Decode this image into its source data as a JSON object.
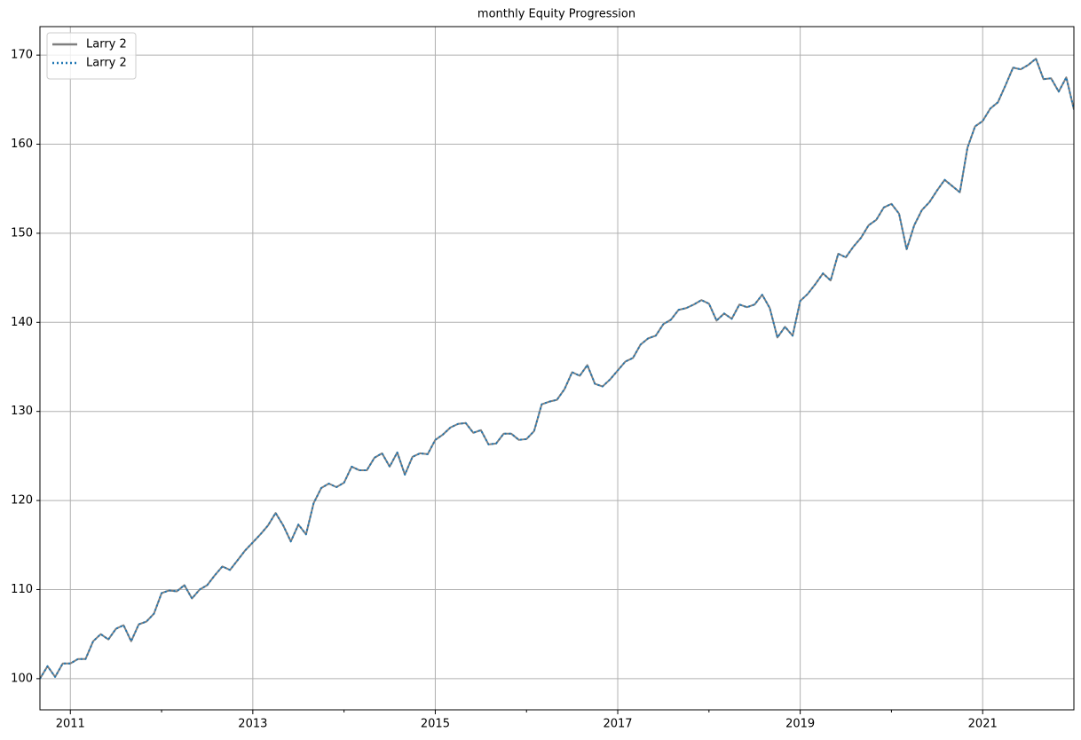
{
  "chart_data": {
    "type": "line",
    "title": "monthly Equity Progression",
    "x": [
      "2010-08",
      "2010-09",
      "2010-10",
      "2010-11",
      "2010-12",
      "2011-01",
      "2011-02",
      "2011-03",
      "2011-04",
      "2011-05",
      "2011-06",
      "2011-07",
      "2011-08",
      "2011-09",
      "2011-10",
      "2011-11",
      "2011-12",
      "2012-01",
      "2012-02",
      "2012-03",
      "2012-04",
      "2012-05",
      "2012-06",
      "2012-07",
      "2012-08",
      "2012-09",
      "2012-10",
      "2012-11",
      "2012-12",
      "2013-01",
      "2013-02",
      "2013-03",
      "2013-04",
      "2013-05",
      "2013-06",
      "2013-07",
      "2013-08",
      "2013-09",
      "2013-10",
      "2013-11",
      "2013-12",
      "2014-01",
      "2014-02",
      "2014-03",
      "2014-04",
      "2014-05",
      "2014-06",
      "2014-07",
      "2014-08",
      "2014-09",
      "2014-10",
      "2014-11",
      "2014-12",
      "2015-01",
      "2015-02",
      "2015-03",
      "2015-04",
      "2015-05",
      "2015-06",
      "2015-07",
      "2015-08",
      "2015-09",
      "2015-10",
      "2015-11",
      "2015-12",
      "2016-01",
      "2016-02",
      "2016-03",
      "2016-04",
      "2016-05",
      "2016-06",
      "2016-07",
      "2016-08",
      "2016-09",
      "2016-10",
      "2016-11",
      "2016-12",
      "2017-01",
      "2017-02",
      "2017-03",
      "2017-04",
      "2017-05",
      "2017-06",
      "2017-07",
      "2017-08",
      "2017-09",
      "2017-10",
      "2017-11",
      "2017-12",
      "2018-01",
      "2018-02",
      "2018-03",
      "2018-04",
      "2018-05",
      "2018-06",
      "2018-07",
      "2018-08",
      "2018-09",
      "2018-10",
      "2018-11",
      "2018-12",
      "2019-01",
      "2019-02",
      "2019-03",
      "2019-04",
      "2019-05",
      "2019-06",
      "2019-07",
      "2019-08",
      "2019-09",
      "2019-10",
      "2019-11",
      "2019-12",
      "2020-01",
      "2020-02",
      "2020-03",
      "2020-04",
      "2020-05",
      "2020-06",
      "2020-07",
      "2020-08",
      "2020-09",
      "2020-10",
      "2020-11",
      "2020-12",
      "2021-01",
      "2021-02",
      "2021-03",
      "2021-04",
      "2021-05",
      "2021-06",
      "2021-07",
      "2021-08",
      "2021-09",
      "2021-10",
      "2021-11",
      "2021-12"
    ],
    "series": [
      {
        "name": "Larry 2",
        "color": "#7f7f7f",
        "dash": "solid",
        "values": [
          100,
          101.4,
          100.2,
          101.7,
          101.7,
          102.2,
          102.2,
          104.2,
          105,
          104.4,
          105.6,
          106,
          104.2,
          106.1,
          106.4,
          107.3,
          109.6,
          109.9,
          109.8,
          110.5,
          109,
          110,
          110.5,
          111.6,
          112.6,
          112.2,
          113.3,
          114.4,
          115.3,
          116.2,
          117.2,
          118.6,
          117.2,
          115.4,
          117.3,
          116.2,
          119.7,
          121.4,
          121.9,
          121.5,
          122,
          123.8,
          123.4,
          123.4,
          124.8,
          125.3,
          123.8,
          125.4,
          122.9,
          124.9,
          125.3,
          125.2,
          126.8,
          127.4,
          128.2,
          128.6,
          128.7,
          127.6,
          127.9,
          126.3,
          126.4,
          127.5,
          127.5,
          126.8,
          126.9,
          127.8,
          130.8,
          131.1,
          131.3,
          132.5,
          134.4,
          134,
          135.2,
          133.1,
          132.8,
          133.6,
          134.6,
          135.6,
          136,
          137.5,
          138.2,
          138.5,
          139.8,
          140.3,
          141.4,
          141.6,
          142,
          142.5,
          142.1,
          140.2,
          141,
          140.4,
          142,
          141.7,
          142,
          143.1,
          141.6,
          138.3,
          139.5,
          138.5,
          142.4,
          143.2,
          144.3,
          145.5,
          144.7,
          147.7,
          147.3,
          148.5,
          149.5,
          150.9,
          151.5,
          152.9,
          153.3,
          152.2,
          148.2,
          150.9,
          152.6,
          153.5,
          154.8,
          156,
          155.3,
          154.6,
          159.6,
          162,
          162.6,
          164,
          164.7,
          166.6,
          168.6,
          168.4,
          168.9,
          169.6,
          167.3,
          167.4,
          165.9,
          167.5,
          163.9
        ]
      },
      {
        "name": "Larry 2",
        "color": "#1f77b4",
        "dash": "dotted",
        "values": [
          100,
          101.4,
          100.2,
          101.7,
          101.7,
          102.2,
          102.2,
          104.2,
          105,
          104.4,
          105.6,
          106,
          104.2,
          106.1,
          106.4,
          107.3,
          109.6,
          109.9,
          109.8,
          110.5,
          109,
          110,
          110.5,
          111.6,
          112.6,
          112.2,
          113.3,
          114.4,
          115.3,
          116.2,
          117.2,
          118.6,
          117.2,
          115.4,
          117.3,
          116.2,
          119.7,
          121.4,
          121.9,
          121.5,
          122,
          123.8,
          123.4,
          123.4,
          124.8,
          125.3,
          123.8,
          125.4,
          122.9,
          124.9,
          125.3,
          125.2,
          126.8,
          127.4,
          128.2,
          128.6,
          128.7,
          127.6,
          127.9,
          126.3,
          126.4,
          127.5,
          127.5,
          126.8,
          126.9,
          127.8,
          130.8,
          131.1,
          131.3,
          132.5,
          134.4,
          134,
          135.2,
          133.1,
          132.8,
          133.6,
          134.6,
          135.6,
          136,
          137.5,
          138.2,
          138.5,
          139.8,
          140.3,
          141.4,
          141.6,
          142,
          142.5,
          142.1,
          140.2,
          141,
          140.4,
          142,
          141.7,
          142,
          143.1,
          141.6,
          138.3,
          139.5,
          138.5,
          142.4,
          143.2,
          144.3,
          145.5,
          144.7,
          147.7,
          147.3,
          148.5,
          149.5,
          150.9,
          151.5,
          152.9,
          153.3,
          152.2,
          148.2,
          150.9,
          152.6,
          153.5,
          154.8,
          156,
          155.3,
          154.6,
          159.6,
          162,
          162.6,
          164,
          164.7,
          166.6,
          168.6,
          168.4,
          168.9,
          169.6,
          167.3,
          167.4,
          165.9,
          167.5,
          163.9
        ]
      }
    ],
    "xlim": [
      "2010-08",
      "2021-12"
    ],
    "xticks": [
      2011,
      2013,
      2015,
      2017,
      2019,
      2021
    ],
    "xminorticks": [
      2012,
      2014,
      2016,
      2018,
      2020
    ],
    "ylim": [
      96.5,
      173.2
    ],
    "yticks": [
      100,
      110,
      120,
      130,
      140,
      150,
      160,
      170
    ],
    "grid": true,
    "legend": "upper left"
  }
}
